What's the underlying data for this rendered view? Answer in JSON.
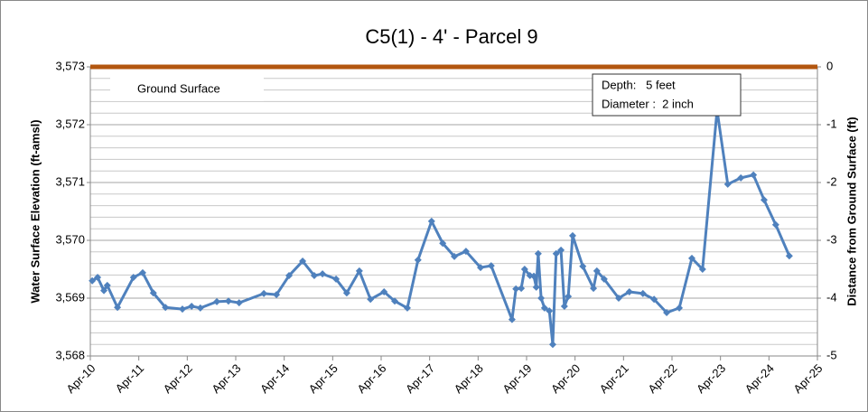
{
  "chart_data": {
    "type": "line",
    "title": "C5(1) - 4' - Parcel 9",
    "y_label": "Water Surface Elevation (ft-amsl)",
    "y2_label": "Distance from Ground Surface (ft)",
    "annotation": [
      "Depth:   5 feet",
      "Diameter :  2 inch"
    ],
    "xlim": [
      2010.25,
      2025.25
    ],
    "xticks": [
      {
        "value": 2010.25,
        "label": "Apr-10"
      },
      {
        "value": 2011.25,
        "label": "Apr-11"
      },
      {
        "value": 2012.25,
        "label": "Apr-12"
      },
      {
        "value": 2013.25,
        "label": "Apr-13"
      },
      {
        "value": 2014.25,
        "label": "Apr-14"
      },
      {
        "value": 2015.25,
        "label": "Apr-15"
      },
      {
        "value": 2016.25,
        "label": "Apr-16"
      },
      {
        "value": 2017.25,
        "label": "Apr-17"
      },
      {
        "value": 2018.25,
        "label": "Apr-18"
      },
      {
        "value": 2019.25,
        "label": "Apr-19"
      },
      {
        "value": 2020.25,
        "label": "Apr-20"
      },
      {
        "value": 2021.25,
        "label": "Apr-21"
      },
      {
        "value": 2022.25,
        "label": "Apr-22"
      },
      {
        "value": 2023.25,
        "label": "Apr-23"
      },
      {
        "value": 2024.25,
        "label": "Apr-24"
      },
      {
        "value": 2025.25,
        "label": "Apr-25"
      }
    ],
    "ylim": [
      3568,
      3573
    ],
    "yticks": [
      {
        "value": 3568,
        "label": "3,568"
      },
      {
        "value": 3569,
        "label": "3,569"
      },
      {
        "value": 3570,
        "label": "3,570"
      },
      {
        "value": 3571,
        "label": "3,571"
      },
      {
        "value": 3572,
        "label": "3,572"
      },
      {
        "value": 3573,
        "label": "3,573"
      }
    ],
    "y2lim": [
      -5,
      0
    ],
    "y2ticks": [
      -5,
      -4,
      -3,
      -2,
      -1,
      0
    ],
    "grid": true,
    "series": [
      {
        "name": "Ground Surface",
        "color": "#b3560f",
        "x": [
          2010.25,
          2025.25
        ],
        "values": [
          3573,
          3573
        ]
      },
      {
        "name": null,
        "color": "#4f81bd",
        "markers": true,
        "x": [
          2010.29,
          2010.4,
          2010.53,
          2010.6,
          2010.81,
          2011.14,
          2011.33,
          2011.55,
          2011.8,
          2012.15,
          2012.34,
          2012.52,
          2012.86,
          2013.1,
          2013.32,
          2013.83,
          2014.09,
          2014.35,
          2014.63,
          2014.87,
          2015.04,
          2015.32,
          2015.54,
          2015.8,
          2016.03,
          2016.31,
          2016.53,
          2016.79,
          2017.01,
          2017.29,
          2017.52,
          2017.76,
          2018.0,
          2018.3,
          2018.52,
          2018.95,
          2019.03,
          2019.14,
          2019.21,
          2019.32,
          2019.4,
          2019.45,
          2019.49,
          2019.55,
          2019.62,
          2019.72,
          2019.79,
          2019.86,
          2019.96,
          2020.03,
          2020.11,
          2020.2,
          2020.41,
          2020.63,
          2020.7,
          2020.85,
          2021.15,
          2021.37,
          2021.65,
          2021.88,
          2022.14,
          2022.4,
          2022.66,
          2022.88,
          2023.18,
          2023.4,
          2023.67,
          2023.93,
          2024.15,
          2024.39,
          2024.67
        ],
        "values": [
          3569.3,
          3569.36,
          3569.13,
          3569.22,
          3568.84,
          3569.36,
          3569.44,
          3569.09,
          3568.84,
          3568.81,
          3568.86,
          3568.83,
          3568.94,
          3568.95,
          3568.92,
          3569.08,
          3569.06,
          3569.39,
          3569.64,
          3569.39,
          3569.42,
          3569.33,
          3569.09,
          3569.47,
          3568.98,
          3569.11,
          3568.95,
          3568.83,
          3569.66,
          3570.33,
          3569.95,
          3569.72,
          3569.81,
          3569.53,
          3569.56,
          3568.63,
          3569.16,
          3569.17,
          3569.5,
          3569.39,
          3569.38,
          3569.19,
          3569.77,
          3569.0,
          3568.83,
          3568.78,
          3568.2,
          3569.77,
          3569.83,
          3568.86,
          3569.03,
          3570.08,
          3569.55,
          3569.17,
          3569.47,
          3569.33,
          3569.0,
          3569.11,
          3569.08,
          3568.98,
          3568.75,
          3568.83,
          3569.69,
          3569.5,
          3572.25,
          3570.97,
          3571.08,
          3571.13,
          3570.7,
          3570.27,
          3569.73
        ]
      }
    ]
  }
}
